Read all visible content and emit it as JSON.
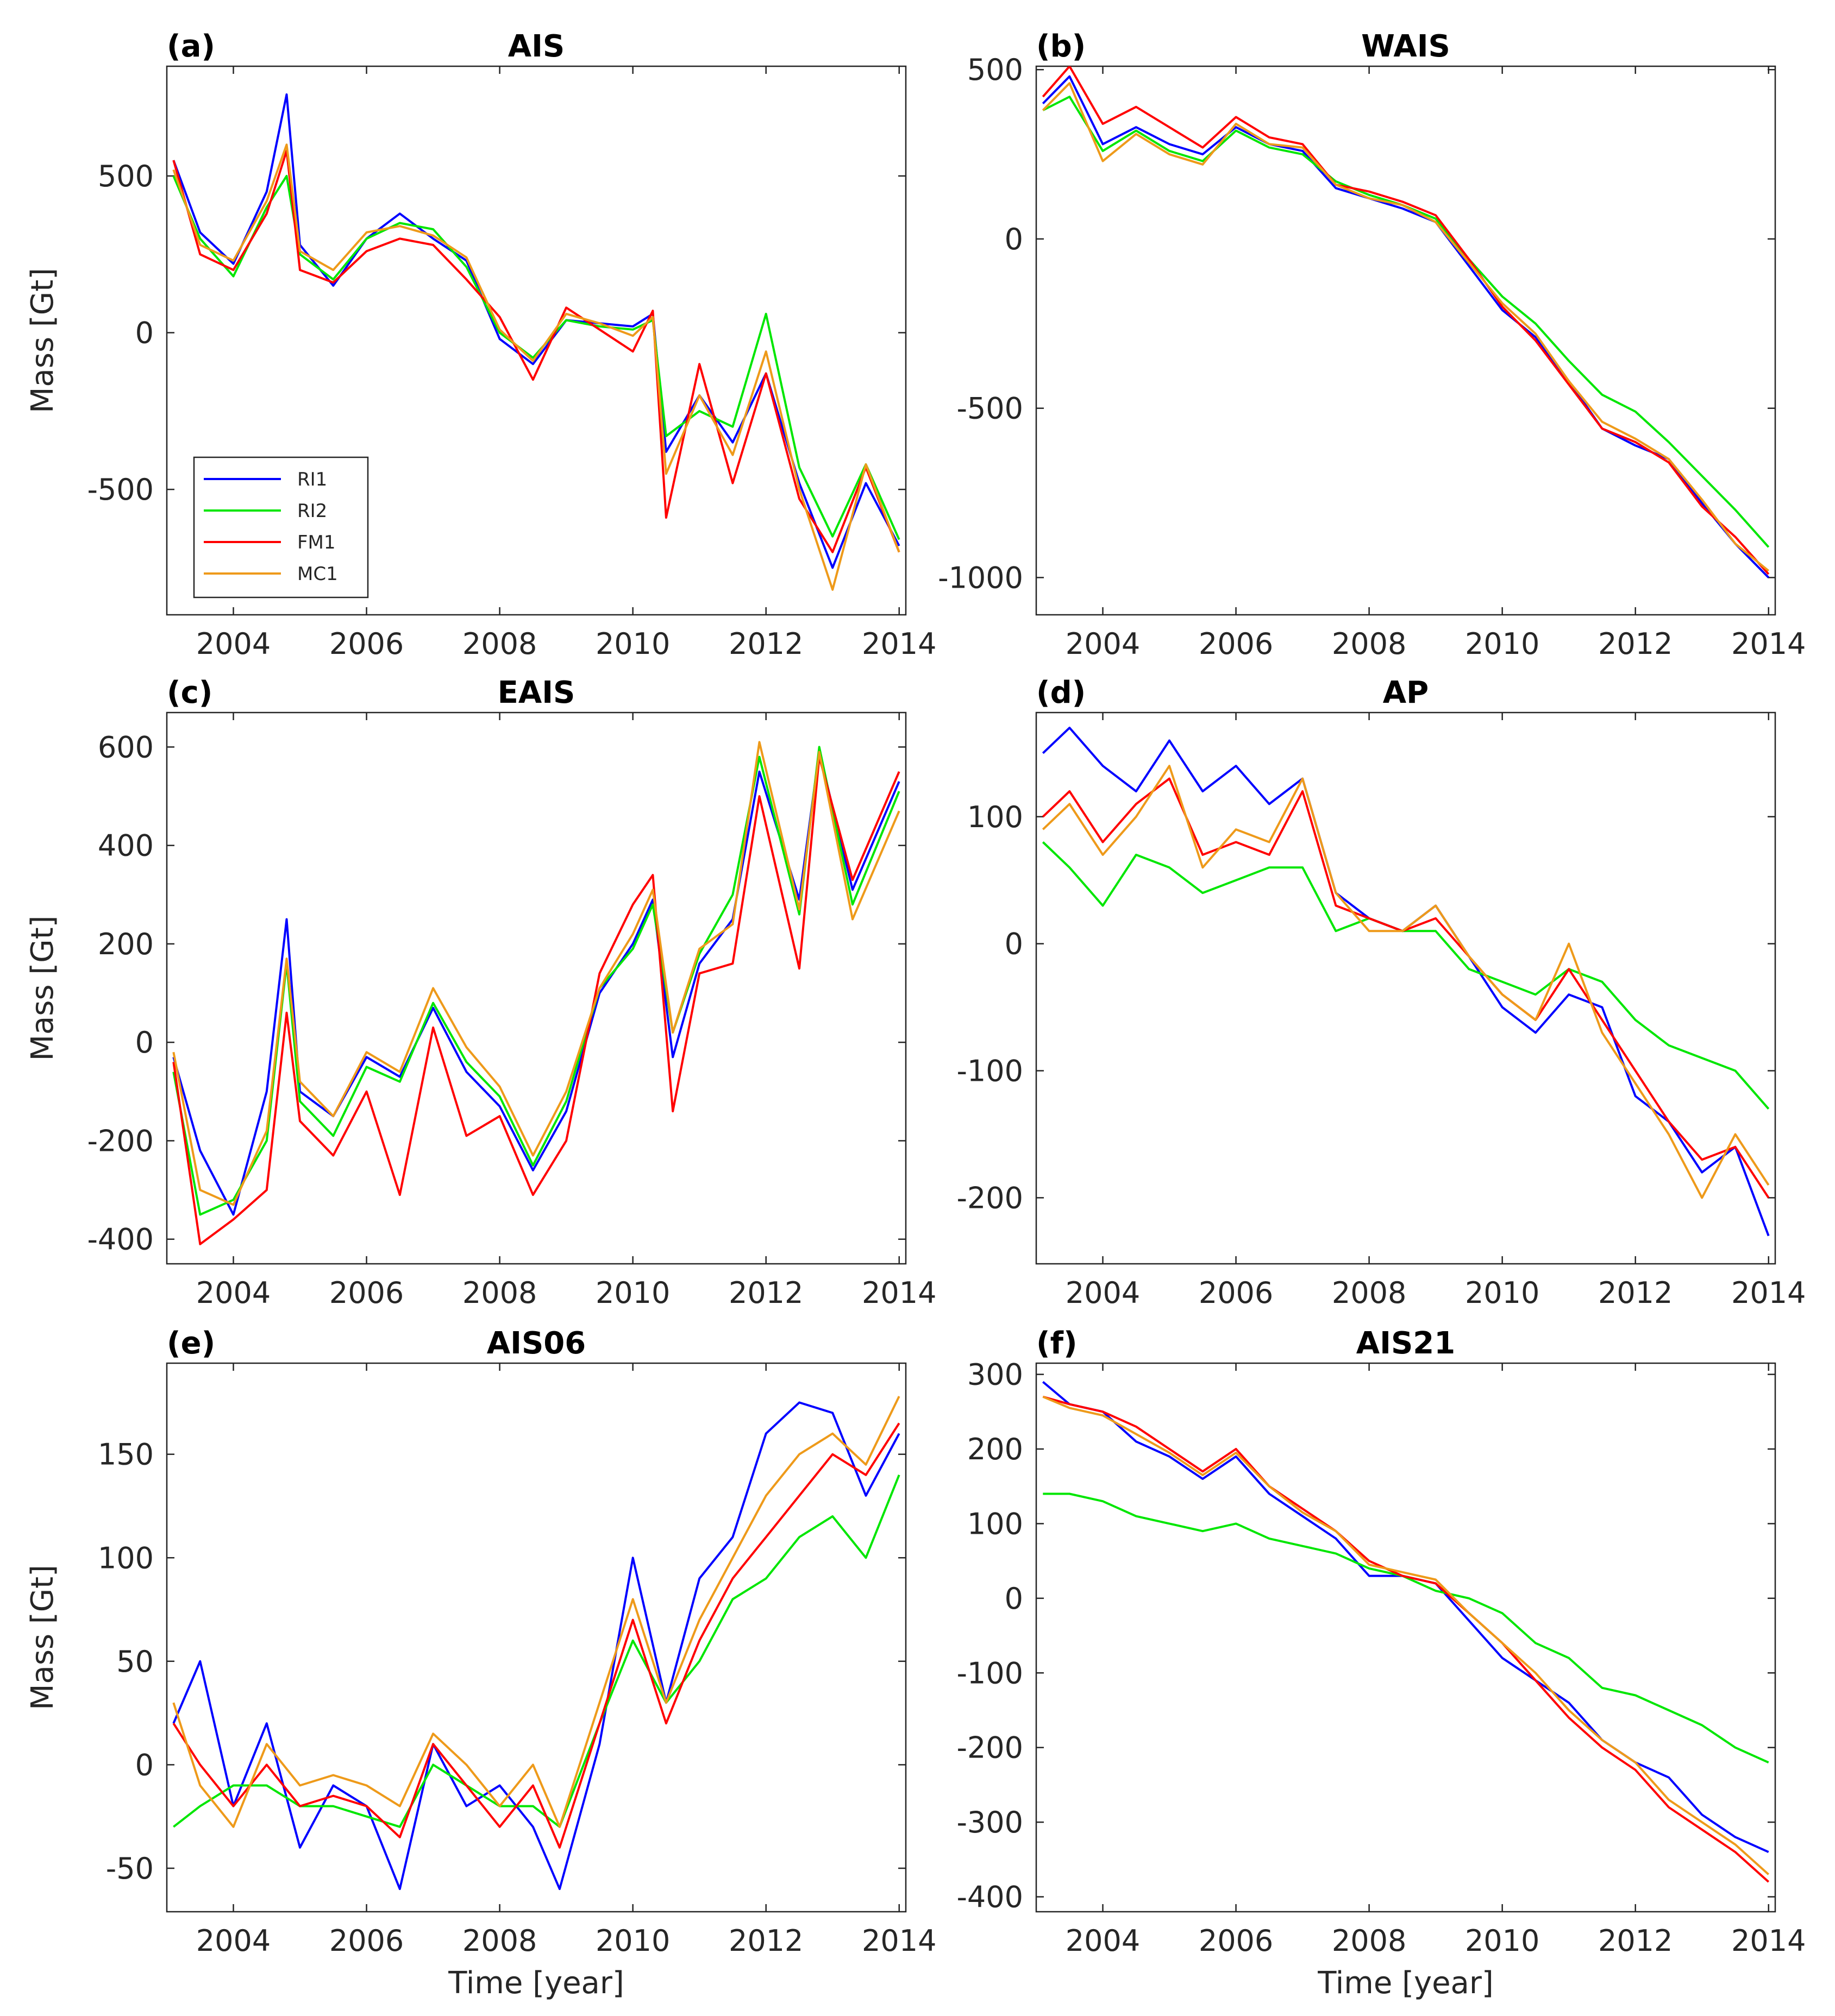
{
  "legend": [
    {
      "name": "RI1",
      "color": "#0000ff"
    },
    {
      "name": "RI2",
      "color": "#00e600"
    },
    {
      "name": "FM1",
      "color": "#ff0000"
    },
    {
      "name": "MC1",
      "color": "#ee9a1a"
    }
  ],
  "chart_data": [
    {
      "type": "line",
      "panel": "(a)",
      "title": "AIS",
      "ylabel": "Mass [Gt]",
      "xlabel": "",
      "xlim": [
        2003.0,
        2014.1
      ],
      "ylim": [
        -900,
        850
      ],
      "xticks": [
        2004,
        2006,
        2008,
        2010,
        2012,
        2014
      ],
      "xtick_labels": [
        "2004",
        "2006",
        "2008",
        "2010",
        "2012",
        "2014"
      ],
      "yticks": [
        -500,
        0,
        500
      ],
      "ytick_labels": [
        "-500",
        "0",
        "500"
      ],
      "legend_loc": "bottom-left",
      "x": [
        2003.1,
        2003.5,
        2004.0,
        2004.5,
        2004.8,
        2005.0,
        2005.5,
        2006.0,
        2006.5,
        2007.0,
        2007.5,
        2008.0,
        2008.5,
        2009.0,
        2009.5,
        2010.0,
        2010.3,
        2010.5,
        2011.0,
        2011.5,
        2012.0,
        2012.5,
        2013.0,
        2013.5,
        2014.0
      ],
      "series": [
        {
          "name": "RI1",
          "values": [
            550,
            320,
            220,
            450,
            760,
            280,
            150,
            300,
            380,
            300,
            230,
            -20,
            -100,
            40,
            30,
            20,
            60,
            -380,
            -200,
            -350,
            -130,
            -480,
            -750,
            -480,
            -680
          ]
        },
        {
          "name": "RI2",
          "values": [
            500,
            300,
            180,
            400,
            500,
            250,
            170,
            300,
            350,
            330,
            210,
            0,
            -80,
            40,
            20,
            10,
            40,
            -330,
            -250,
            -300,
            60,
            -430,
            -650,
            -420,
            -660
          ]
        },
        {
          "name": "FM1",
          "values": [
            550,
            250,
            200,
            380,
            580,
            200,
            160,
            260,
            300,
            280,
            170,
            50,
            -150,
            80,
            10,
            -60,
            70,
            -590,
            -100,
            -480,
            -130,
            -530,
            -700,
            -430,
            -700
          ]
        },
        {
          "name": "MC1",
          "values": [
            520,
            280,
            230,
            420,
            600,
            260,
            200,
            320,
            340,
            310,
            240,
            10,
            -90,
            60,
            30,
            -10,
            50,
            -450,
            -200,
            -390,
            -60,
            -500,
            -820,
            -420,
            -700
          ]
        }
      ]
    },
    {
      "type": "line",
      "panel": "(b)",
      "title": "WAIS",
      "ylabel": "",
      "xlabel": "",
      "xlim": [
        2003.0,
        2014.1
      ],
      "ylim": [
        -1110,
        510
      ],
      "xticks": [
        2004,
        2006,
        2008,
        2010,
        2012,
        2014
      ],
      "xtick_labels": [
        "2004",
        "2006",
        "2008",
        "2010",
        "2012",
        "2014"
      ],
      "yticks": [
        -1000,
        -500,
        0,
        500
      ],
      "ytick_labels": [
        "-1000",
        "-500",
        "0",
        "500"
      ],
      "x": [
        2003.1,
        2003.5,
        2004.0,
        2004.5,
        2005.0,
        2005.5,
        2006.0,
        2006.5,
        2007.0,
        2007.5,
        2008.0,
        2008.5,
        2009.0,
        2009.5,
        2010.0,
        2010.5,
        2011.0,
        2011.5,
        2012.0,
        2012.5,
        2013.0,
        2013.5,
        2014.0
      ],
      "series": [
        {
          "name": "RI1",
          "values": [
            400,
            480,
            280,
            330,
            280,
            250,
            330,
            280,
            260,
            150,
            120,
            90,
            50,
            -80,
            -210,
            -290,
            -420,
            -560,
            -610,
            -650,
            -780,
            -900,
            -1000
          ]
        },
        {
          "name": "RI2",
          "values": [
            380,
            420,
            260,
            320,
            260,
            230,
            320,
            270,
            250,
            170,
            130,
            100,
            60,
            -60,
            -170,
            -250,
            -360,
            -460,
            -510,
            -600,
            -700,
            -800,
            -910
          ]
        },
        {
          "name": "FM1",
          "values": [
            420,
            510,
            340,
            390,
            330,
            270,
            360,
            300,
            280,
            160,
            140,
            110,
            70,
            -60,
            -200,
            -300,
            -430,
            -560,
            -600,
            -660,
            -790,
            -880,
            -990
          ]
        },
        {
          "name": "MC1",
          "values": [
            380,
            460,
            230,
            310,
            250,
            220,
            340,
            280,
            270,
            160,
            120,
            100,
            50,
            -70,
            -190,
            -280,
            -420,
            -540,
            -590,
            -650,
            -770,
            -900,
            -980
          ]
        }
      ]
    },
    {
      "type": "line",
      "panel": "(c)",
      "title": "EAIS",
      "ylabel": "Mass [Gt]",
      "xlabel": "",
      "xlim": [
        2003.0,
        2014.1
      ],
      "ylim": [
        -450,
        670
      ],
      "xticks": [
        2004,
        2006,
        2008,
        2010,
        2012,
        2014
      ],
      "xtick_labels": [
        "2004",
        "2006",
        "2008",
        "2010",
        "2012",
        "2014"
      ],
      "yticks": [
        -400,
        -200,
        0,
        200,
        400,
        600
      ],
      "ytick_labels": [
        "-400",
        "-200",
        "0",
        "200",
        "400",
        "600"
      ],
      "x": [
        2003.1,
        2003.5,
        2004.0,
        2004.5,
        2004.8,
        2005.0,
        2005.5,
        2006.0,
        2006.5,
        2007.0,
        2007.5,
        2008.0,
        2008.5,
        2009.0,
        2009.5,
        2010.0,
        2010.3,
        2010.6,
        2011.0,
        2011.5,
        2011.9,
        2012.5,
        2012.8,
        2013.3,
        2014.0
      ],
      "series": [
        {
          "name": "RI1",
          "values": [
            -30,
            -220,
            -350,
            -100,
            250,
            -100,
            -150,
            -30,
            -70,
            70,
            -60,
            -130,
            -260,
            -140,
            100,
            200,
            290,
            -30,
            160,
            250,
            550,
            290,
            590,
            310,
            530
          ]
        },
        {
          "name": "RI2",
          "values": [
            -60,
            -350,
            -320,
            -200,
            160,
            -120,
            -190,
            -50,
            -80,
            80,
            -40,
            -110,
            -250,
            -120,
            110,
            190,
            280,
            20,
            180,
            300,
            580,
            260,
            600,
            280,
            510
          ]
        },
        {
          "name": "FM1",
          "values": [
            -40,
            -410,
            -360,
            -300,
            60,
            -160,
            -230,
            -100,
            -310,
            30,
            -190,
            -150,
            -310,
            -200,
            140,
            280,
            340,
            -140,
            140,
            160,
            500,
            150,
            580,
            330,
            550
          ]
        },
        {
          "name": "MC1",
          "values": [
            -20,
            -300,
            -330,
            -180,
            170,
            -80,
            -150,
            -20,
            -60,
            110,
            -10,
            -90,
            -230,
            -100,
            110,
            220,
            310,
            20,
            190,
            240,
            610,
            270,
            590,
            250,
            470
          ]
        }
      ]
    },
    {
      "type": "line",
      "panel": "(d)",
      "title": "AP",
      "ylabel": "",
      "xlabel": "",
      "xlim": [
        2003.0,
        2014.1
      ],
      "ylim": [
        -252,
        182
      ],
      "xticks": [
        2004,
        2006,
        2008,
        2010,
        2012,
        2014
      ],
      "xtick_labels": [
        "2004",
        "2006",
        "2008",
        "2010",
        "2012",
        "2014"
      ],
      "yticks": [
        -200,
        -100,
        0,
        100
      ],
      "ytick_labels": [
        "-200",
        "-100",
        "0",
        "100"
      ],
      "x": [
        2003.1,
        2003.5,
        2004.0,
        2004.5,
        2005.0,
        2005.5,
        2006.0,
        2006.5,
        2007.0,
        2007.5,
        2008.0,
        2008.5,
        2009.0,
        2009.5,
        2010.0,
        2010.5,
        2011.0,
        2011.5,
        2012.0,
        2012.5,
        2013.0,
        2013.5,
        2014.0
      ],
      "series": [
        {
          "name": "RI1",
          "values": [
            150,
            170,
            140,
            120,
            160,
            120,
            140,
            110,
            130,
            40,
            20,
            10,
            30,
            -10,
            -50,
            -70,
            -40,
            -50,
            -120,
            -140,
            -180,
            -160,
            -230
          ]
        },
        {
          "name": "RI2",
          "values": [
            80,
            60,
            30,
            70,
            60,
            40,
            50,
            60,
            60,
            10,
            20,
            10,
            10,
            -20,
            -30,
            -40,
            -20,
            -30,
            -60,
            -80,
            -90,
            -100,
            -130
          ]
        },
        {
          "name": "FM1",
          "values": [
            100,
            120,
            80,
            110,
            130,
            70,
            80,
            70,
            120,
            30,
            20,
            10,
            20,
            -10,
            -40,
            -60,
            -20,
            -60,
            -100,
            -140,
            -170,
            -160,
            -200
          ]
        },
        {
          "name": "MC1",
          "values": [
            90,
            110,
            70,
            100,
            140,
            60,
            90,
            80,
            130,
            40,
            10,
            10,
            30,
            -10,
            -40,
            -60,
            0,
            -70,
            -110,
            -150,
            -200,
            -150,
            -190
          ]
        }
      ]
    },
    {
      "type": "line",
      "panel": "(e)",
      "title": "AIS06",
      "ylabel": "Mass [Gt]",
      "xlabel": "Time [year]",
      "xlim": [
        2003.0,
        2014.1
      ],
      "ylim": [
        -71,
        194
      ],
      "xticks": [
        2004,
        2006,
        2008,
        2010,
        2012,
        2014
      ],
      "xtick_labels": [
        "2004",
        "2006",
        "2008",
        "2010",
        "2012",
        "2014"
      ],
      "yticks": [
        -50,
        0,
        50,
        100,
        150
      ],
      "ytick_labels": [
        "-50",
        "0",
        "50",
        "100",
        "150"
      ],
      "x": [
        2003.1,
        2003.5,
        2004.0,
        2004.5,
        2005.0,
        2005.5,
        2006.0,
        2006.5,
        2007.0,
        2007.5,
        2008.0,
        2008.5,
        2008.9,
        2009.5,
        2010.0,
        2010.5,
        2011.0,
        2011.5,
        2012.0,
        2012.5,
        2013.0,
        2013.5,
        2014.0
      ],
      "series": [
        {
          "name": "RI1",
          "values": [
            20,
            50,
            -20,
            20,
            -40,
            -10,
            -20,
            -60,
            10,
            -20,
            -10,
            -30,
            -60,
            10,
            100,
            30,
            90,
            110,
            160,
            175,
            170,
            130,
            160
          ]
        },
        {
          "name": "RI2",
          "values": [
            -30,
            -20,
            -10,
            -10,
            -20,
            -20,
            -25,
            -30,
            0,
            -10,
            -20,
            -20,
            -30,
            20,
            60,
            30,
            50,
            80,
            90,
            110,
            120,
            100,
            140
          ]
        },
        {
          "name": "FM1",
          "values": [
            20,
            0,
            -20,
            0,
            -20,
            -15,
            -20,
            -35,
            10,
            -10,
            -30,
            -10,
            -40,
            20,
            70,
            20,
            60,
            90,
            110,
            130,
            150,
            140,
            165
          ]
        },
        {
          "name": "MC1",
          "values": [
            30,
            -10,
            -30,
            10,
            -10,
            -5,
            -10,
            -20,
            15,
            0,
            -20,
            0,
            -30,
            30,
            80,
            30,
            70,
            100,
            130,
            150,
            160,
            145,
            178
          ]
        }
      ]
    },
    {
      "type": "line",
      "panel": "(f)",
      "title": "AIS21",
      "ylabel": "",
      "xlabel": "Time [year]",
      "xlim": [
        2003.0,
        2014.1
      ],
      "ylim": [
        -420,
        315
      ],
      "xticks": [
        2004,
        2006,
        2008,
        2010,
        2012,
        2014
      ],
      "xtick_labels": [
        "2004",
        "2006",
        "2008",
        "2010",
        "2012",
        "2014"
      ],
      "yticks": [
        -400,
        -300,
        -200,
        -100,
        0,
        100,
        200,
        300
      ],
      "ytick_labels": [
        "-400",
        "-300",
        "-200",
        "-100",
        "0",
        "100",
        "200",
        "300"
      ],
      "x": [
        2003.1,
        2003.5,
        2004.0,
        2004.5,
        2005.0,
        2005.5,
        2006.0,
        2006.5,
        2007.0,
        2007.5,
        2008.0,
        2008.5,
        2009.0,
        2009.5,
        2010.0,
        2010.5,
        2011.0,
        2011.5,
        2012.0,
        2012.5,
        2013.0,
        2013.5,
        2014.0
      ],
      "series": [
        {
          "name": "RI1",
          "values": [
            290,
            260,
            250,
            210,
            190,
            160,
            190,
            140,
            110,
            80,
            30,
            30,
            20,
            -30,
            -80,
            -110,
            -140,
            -190,
            -220,
            -240,
            -290,
            -320,
            -340
          ]
        },
        {
          "name": "RI2",
          "values": [
            140,
            140,
            130,
            110,
            100,
            90,
            100,
            80,
            70,
            60,
            40,
            30,
            10,
            0,
            -20,
            -60,
            -80,
            -120,
            -130,
            -150,
            -170,
            -200,
            -220
          ]
        },
        {
          "name": "FM1",
          "values": [
            270,
            260,
            250,
            230,
            200,
            170,
            200,
            150,
            120,
            90,
            50,
            30,
            20,
            -20,
            -60,
            -110,
            -160,
            -200,
            -230,
            -280,
            -310,
            -340,
            -380
          ]
        },
        {
          "name": "MC1",
          "values": [
            270,
            255,
            245,
            220,
            195,
            165,
            195,
            150,
            115,
            90,
            45,
            35,
            25,
            -20,
            -60,
            -100,
            -150,
            -190,
            -220,
            -270,
            -300,
            -330,
            -370
          ]
        }
      ]
    }
  ]
}
